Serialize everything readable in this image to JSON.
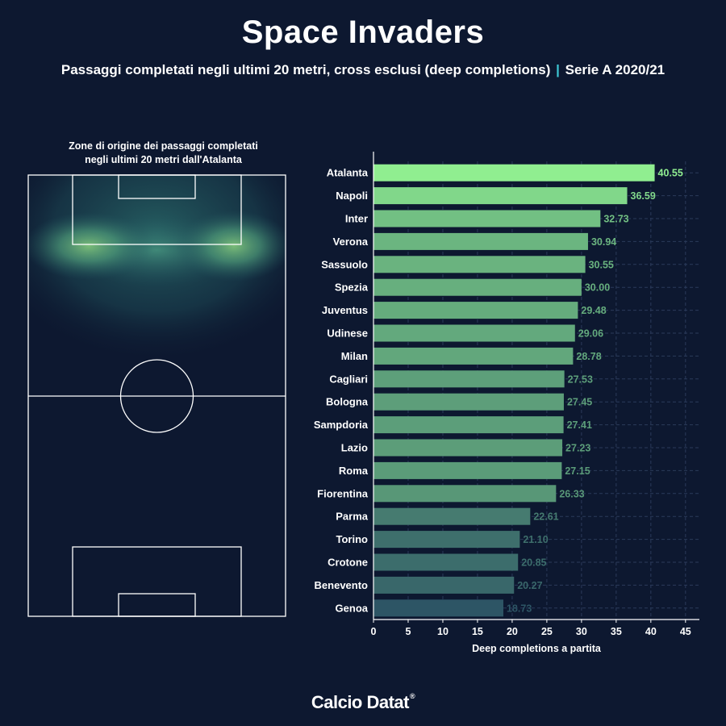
{
  "header": {
    "title": "Space Invaders",
    "subtitle_main": "Passaggi completati negli ultimi 20 metri, cross esclusi (deep completions)",
    "subtitle_separator": "|",
    "subtitle_league": "Serie A 2020/21"
  },
  "pitch_panel": {
    "caption_line1": "Zone di origine dei passaggi completati",
    "caption_line2": "negli ultimi 20 metri dall'Atalanta",
    "heatmap_team": "Atalanta"
  },
  "chart_data": {
    "type": "bar",
    "orientation": "horizontal",
    "categories": [
      "Atalanta",
      "Napoli",
      "Inter",
      "Verona",
      "Sassuolo",
      "Spezia",
      "Juventus",
      "Udinese",
      "Milan",
      "Cagliari",
      "Bologna",
      "Sampdoria",
      "Lazio",
      "Roma",
      "Fiorentina",
      "Parma",
      "Torino",
      "Crotone",
      "Benevento",
      "Genoa"
    ],
    "values": [
      40.55,
      36.59,
      32.73,
      30.94,
      30.55,
      30.0,
      29.48,
      29.06,
      28.78,
      27.53,
      27.45,
      27.41,
      27.23,
      27.15,
      26.33,
      22.61,
      21.1,
      20.85,
      20.27,
      18.73
    ],
    "value_labels": [
      "40.55",
      "36.59",
      "32.73",
      "30.94",
      "30.55",
      "30.00",
      "29.48",
      "29.06",
      "28.78",
      "27.53",
      "27.45",
      "27.41",
      "27.23",
      "27.15",
      "26.33",
      "22.61",
      "21.10",
      "20.85",
      "20.27",
      "18.73"
    ],
    "xlabel": "Deep completions a partita",
    "xlim": [
      0,
      47
    ],
    "xticks": [
      0,
      5,
      10,
      15,
      20,
      25,
      30,
      35,
      40,
      45
    ],
    "grid": true,
    "colors": {
      "high": "#90ee90",
      "low": "#2d5565"
    }
  },
  "footer": {
    "logo_text": "Calcio Datat",
    "logo_mark": "®"
  }
}
